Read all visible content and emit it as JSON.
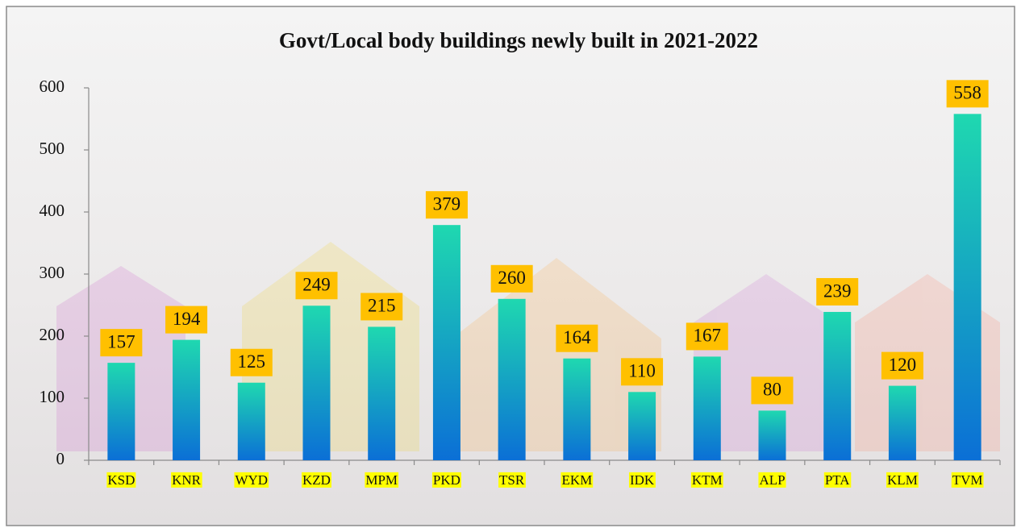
{
  "chart_data": {
    "type": "bar",
    "title": "Govt/Local body buildings newly built in 2021-2022",
    "categories": [
      "KSD",
      "KNR",
      "WYD",
      "KZD",
      "MPM",
      "PKD",
      "TSR",
      "EKM",
      "IDK",
      "KTM",
      "ALP",
      "PTA",
      "KLM",
      "TVM"
    ],
    "values": [
      157,
      194,
      125,
      249,
      215,
      379,
      260,
      164,
      110,
      167,
      80,
      239,
      120,
      558
    ],
    "color_top": "#1fd8b0",
    "color_bottom": "#0b6fd6",
    "value_label_box_color": "#ffc000",
    "category_highlight_color": "#ffff00",
    "ylim": [
      0,
      600
    ],
    "yticks": [
      0,
      100,
      200,
      300,
      400,
      500,
      600
    ],
    "grid": false
  }
}
